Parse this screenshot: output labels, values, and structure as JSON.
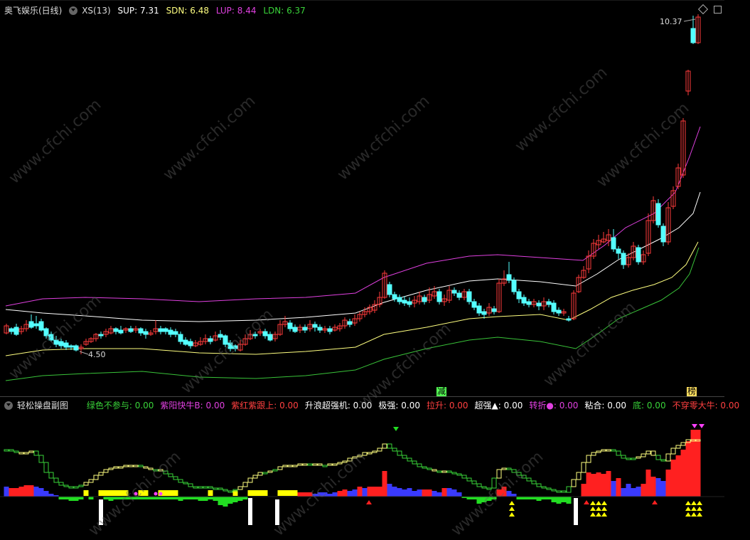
{
  "main_header": {
    "title": "奥飞娱乐(日线)",
    "indicator": "XS(13)",
    "sup": "SUP: 7.31",
    "sdn": "SDN: 6.48",
    "lup": "LUP: 8.44",
    "ldn": "LDN: 6.37"
  },
  "price_labels": {
    "high": "10.37",
    "low": "4.50"
  },
  "markers": {
    "jian": "减",
    "bang": "榜"
  },
  "sub_header": {
    "title": "轻松操盘副图",
    "items": [
      {
        "label": "绿色不参与: 0.00",
        "color": "#39d339"
      },
      {
        "label": "紫阳快牛B: 0.00",
        "color": "#e040e0"
      },
      {
        "label": "紫红紫跟上: 0.00",
        "color": "#ff4040"
      },
      {
        "label": "升浪超强机: 0.00",
        "color": "#ffffff"
      },
      {
        "label": "极强: 0.00",
        "color": "#ffffff"
      },
      {
        "label": "拉升: 0.00",
        "color": "#ff4040"
      },
      {
        "label": "超强▲: 0.00",
        "color": "#ffffff"
      },
      {
        "label": "转折●: 0.00",
        "color": "#e040e0"
      },
      {
        "label": "粘合: 0.00",
        "color": "#ffffff"
      },
      {
        "label": "底: 0.00",
        "color": "#39d339"
      },
      {
        "label": "不穿零大牛: 0.00",
        "color": "#ff4040"
      }
    ]
  },
  "watermark_text": "www.cfchi.com",
  "colors": {
    "up": "#ff3b3b",
    "down": "#54ffff",
    "lup": "#e040e0",
    "sup": "#ffffff",
    "sdn": "#ffff80",
    "ldn": "#39c339"
  }
}
